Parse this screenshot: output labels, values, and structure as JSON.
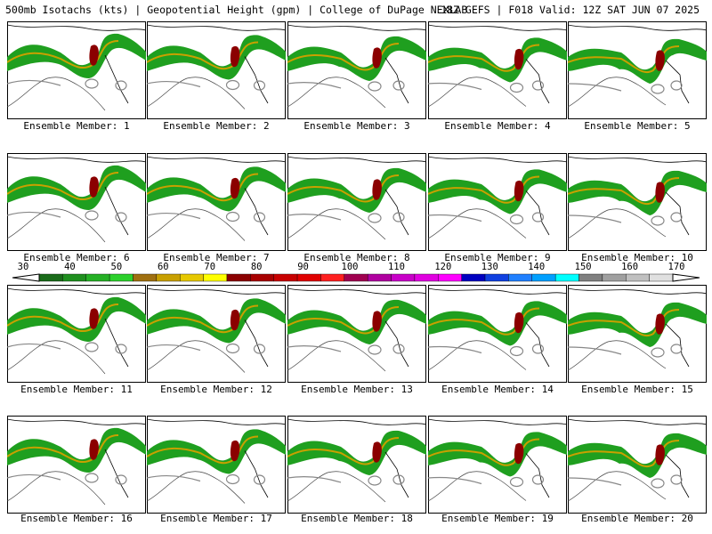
{
  "header": {
    "left": "500mb Isotachs (kts) | Geopotential Height (gpm) | College of DuPage NEXLAB",
    "right": "18Z GEFS | F018 Valid: 12Z SAT JUN 07 2025"
  },
  "members": [
    "Ensemble Member: 1",
    "Ensemble Member: 2",
    "Ensemble Member: 3",
    "Ensemble Member: 4",
    "Ensemble Member: 5",
    "Ensemble Member: 6",
    "Ensemble Member: 7",
    "Ensemble Member: 8",
    "Ensemble Member: 9",
    "Ensemble Member: 10",
    "Ensemble Member: 11",
    "Ensemble Member: 12",
    "Ensemble Member: 13",
    "Ensemble Member: 14",
    "Ensemble Member: 15",
    "Ensemble Member: 16",
    "Ensemble Member: 17",
    "Ensemble Member: 18",
    "Ensemble Member: 19",
    "Ensemble Member: 20"
  ],
  "colorbar": {
    "ticks": [
      "30",
      "40",
      "50",
      "60",
      "70",
      "80",
      "90",
      "100",
      "110",
      "120",
      "130",
      "140",
      "150",
      "160",
      "170"
    ],
    "colors": [
      "#1a6b1a",
      "#1f8f1f",
      "#25b025",
      "#2cd02c",
      "#a07010",
      "#c8a000",
      "#e6c800",
      "#ffff00",
      "#8b0000",
      "#a80000",
      "#c80000",
      "#e00000",
      "#ff2020",
      "#a00050",
      "#b000a0",
      "#c800c8",
      "#e000e0",
      "#ff00ff",
      "#0000c0",
      "#1040e0",
      "#2080ff",
      "#00a0ff",
      "#00ffff",
      "#808080",
      "#a0a0a0",
      "#c0c0c0",
      "#e0e0e0"
    ]
  }
}
